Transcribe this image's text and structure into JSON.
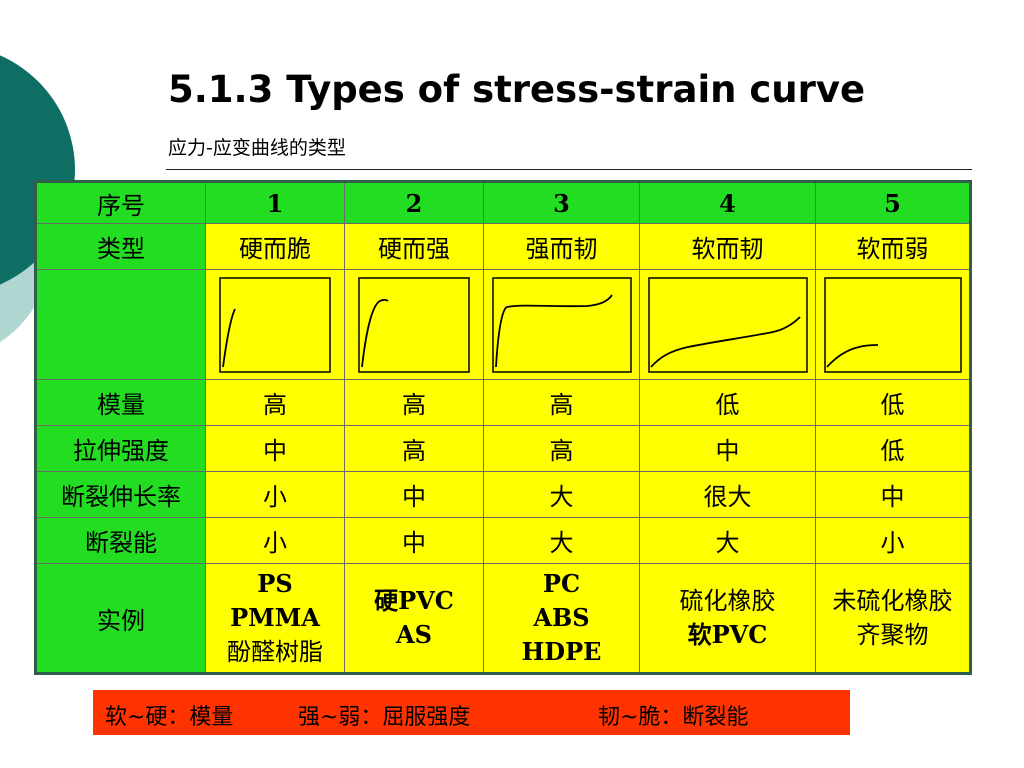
{
  "title": "5.1.3 Types of stress-strain curve",
  "subtitle": "应力-应变曲线的类型",
  "table": {
    "header": {
      "label": "序号",
      "values": [
        "1",
        "2",
        "3",
        "4",
        "5"
      ]
    },
    "type_row": {
      "label": "类型",
      "values": [
        "硬而脆",
        "硬而强",
        "强而韧",
        "软而韧",
        "软而弱"
      ]
    },
    "modulus_row": {
      "label": "模量",
      "values": [
        "高",
        "高",
        "高",
        "低",
        "低"
      ]
    },
    "tensile_row": {
      "label": "拉伸强度",
      "values": [
        "中",
        "高",
        "高",
        "中",
        "低"
      ]
    },
    "elongation_row": {
      "label": "断裂伸长率",
      "values": [
        "小",
        "中",
        "大",
        "很大",
        "中"
      ]
    },
    "energy_row": {
      "label": "断裂能",
      "values": [
        "小",
        "中",
        "大",
        "大",
        "小"
      ]
    },
    "example_row": {
      "label": "实例",
      "values": [
        [
          "PS",
          "PMMA",
          "酚醛树脂"
        ],
        [
          "硬PVC",
          "AS"
        ],
        [
          "PC",
          "ABS",
          "HDPE"
        ],
        [
          "硫化橡胶",
          "软PVC"
        ],
        [
          "未硫化橡胶",
          "齐聚物"
        ]
      ]
    }
  },
  "note": {
    "part1": "软~硬：模量",
    "part2": "强~弱：屈服强度",
    "part3": "韧~脆：断裂能"
  },
  "colors": {
    "header_green": "#22dd22",
    "cell_yellow": "#ffff00",
    "note_red": "#ff3300",
    "deco_teal": "#0e6e64",
    "deco_light": "#b0d6d2"
  }
}
